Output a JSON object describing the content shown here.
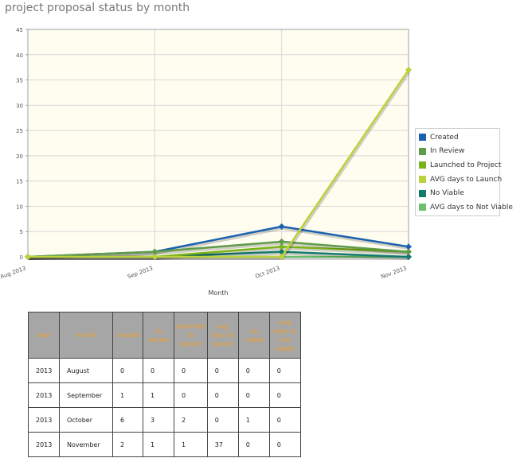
{
  "page": {
    "title": "project proposal status by month"
  },
  "chart_data": {
    "type": "line",
    "title": "",
    "xlabel": "Month",
    "ylabel": "",
    "ylim": [
      0,
      45
    ],
    "yticks": [
      0,
      5,
      10,
      15,
      20,
      25,
      30,
      35,
      40,
      45
    ],
    "categories": [
      "Aug 2013",
      "Sep 2013",
      "Oct 2013",
      "Nov 2013"
    ],
    "grid": true,
    "legend_position": "right",
    "series": [
      {
        "name": "Created",
        "color": "#1a62b0",
        "values": [
          0,
          1,
          6,
          2
        ]
      },
      {
        "name": "In Review",
        "color": "#5e9c4a",
        "values": [
          0,
          1,
          3,
          1
        ]
      },
      {
        "name": "Launched to Project",
        "color": "#7ab317",
        "values": [
          0,
          0,
          2,
          1
        ]
      },
      {
        "name": "AVG days to Launch",
        "color": "#bcd23a",
        "values": [
          0,
          0,
          0,
          37
        ]
      },
      {
        "name": "No Viable",
        "color": "#127a6f",
        "values": [
          0,
          0,
          1,
          0
        ]
      },
      {
        "name": "AVG days to Not Viable",
        "color": "#6cbf6c",
        "values": [
          0,
          0,
          0,
          0
        ]
      }
    ]
  },
  "table": {
    "headers": [
      "year",
      "month",
      "created",
      "in review",
      "launched to project",
      "avg days to launch",
      "no viable",
      "avg days to not viable"
    ],
    "rows": [
      [
        "2013",
        "August",
        "0",
        "0",
        "0",
        "0",
        "0",
        "0"
      ],
      [
        "2013",
        "September",
        "1",
        "1",
        "0",
        "0",
        "0",
        "0"
      ],
      [
        "2013",
        "October",
        "6",
        "3",
        "2",
        "0",
        "1",
        "0"
      ],
      [
        "2013",
        "November",
        "2",
        "1",
        "1",
        "37",
        "0",
        "0"
      ]
    ]
  }
}
